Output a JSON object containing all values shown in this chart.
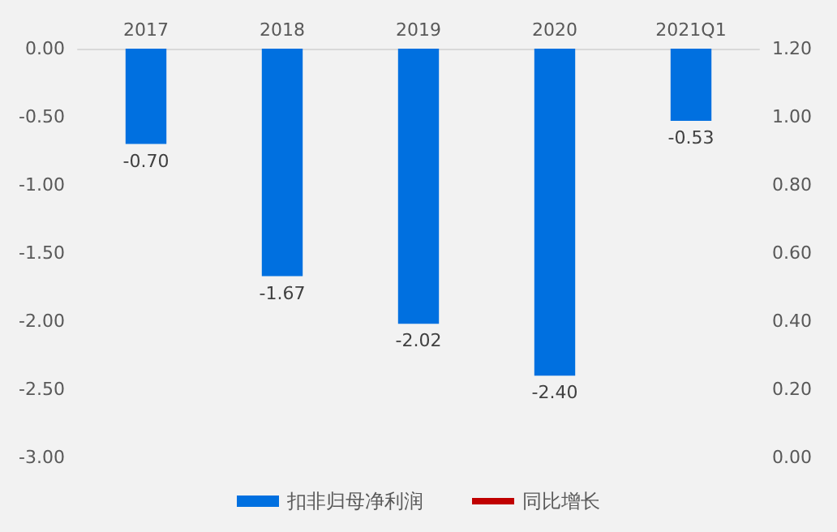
{
  "chart_data": {
    "type": "bar",
    "categories": [
      "2017",
      "2018",
      "2019",
      "2020",
      "2021Q1"
    ],
    "series": [
      {
        "name": "扣非归母净利润",
        "color": "#0070e0",
        "values": [
          -0.7,
          -1.67,
          -2.02,
          -2.4,
          -0.53
        ],
        "value_labels": [
          "-0.70",
          "-1.67",
          "-2.02",
          "-2.40",
          "-0.53"
        ]
      },
      {
        "name": "同比增长",
        "type": "line",
        "color": "#c00000",
        "values": [
          null,
          null,
          null,
          null,
          null
        ]
      }
    ],
    "ylim": [
      -3,
      0
    ],
    "yticks": [
      {
        "value": -3,
        "label": "-3.00"
      },
      {
        "value": -2.5,
        "label": "-2.50"
      },
      {
        "value": -2,
        "label": "-2.00"
      },
      {
        "value": -1.5,
        "label": "-1.50"
      },
      {
        "value": -1,
        "label": "-1.00"
      },
      {
        "value": -0.5,
        "label": "-0.50"
      },
      {
        "value": 0,
        "label": "0.00"
      }
    ],
    "y2lim": [
      0,
      1.2
    ],
    "y2ticks": [
      {
        "value": 0,
        "label": "0.00"
      },
      {
        "value": 0.2,
        "label": "0.20"
      },
      {
        "value": 0.4,
        "label": "0.40"
      },
      {
        "value": 0.6,
        "label": "0.60"
      },
      {
        "value": 0.8,
        "label": "0.80"
      },
      {
        "value": 1,
        "label": "1.00"
      },
      {
        "value": 1.2,
        "label": "1.20"
      }
    ],
    "grid": false,
    "legend": "bottom"
  }
}
